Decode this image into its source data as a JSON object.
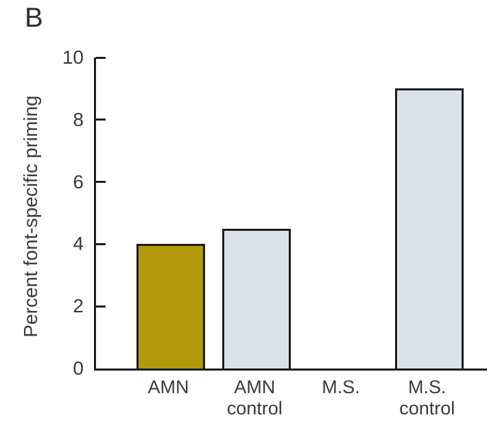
{
  "figure": {
    "panel_label": "B",
    "background_color": "#FFFFFF"
  },
  "chart_data": {
    "type": "bar",
    "title": "",
    "categories": [
      "AMN",
      "AMN\ncontrol",
      "M.S.",
      "M.S.\ncontrol"
    ],
    "values": [
      4.0,
      4.5,
      0,
      9.0
    ],
    "bar_colors": [
      "#B29A0B",
      "#DBE1E8",
      "#DBE1E8",
      "#DBE1E8"
    ],
    "bar_outline_color": "#1C1C1C",
    "xlabel": "",
    "ylabel": "Percent font-specific priming",
    "ylim": [
      0,
      10
    ],
    "yticks": [
      0,
      2,
      4,
      6,
      8,
      10
    ],
    "grid": false,
    "axis_color": "#1C1C1C",
    "text_color": "#3A3A3A",
    "legend_position": "none"
  }
}
